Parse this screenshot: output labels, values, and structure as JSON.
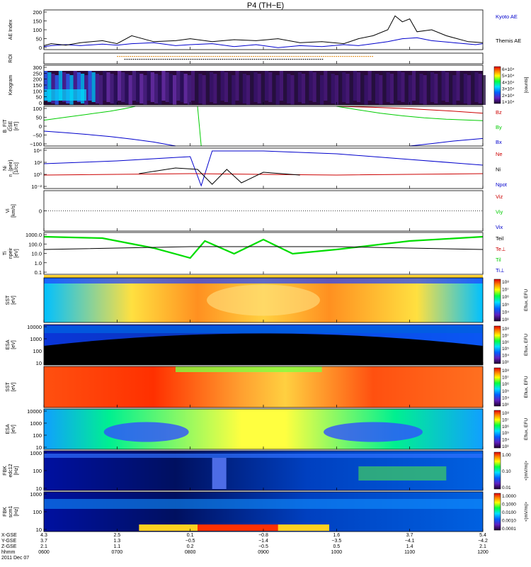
{
  "title": "P4 (TH−E)",
  "chart_data": [
    {
      "type": "line",
      "ylabel": "AE Index",
      "ylim": [
        0,
        200
      ],
      "yticks": [
        "200",
        "150",
        "100",
        "50",
        "0"
      ],
      "series": [
        {
          "name": "Kyoto AE",
          "color": "#0000cc",
          "x": [
            6.0,
            6.1,
            6.3,
            6.5,
            6.8,
            7.0,
            7.2,
            7.5,
            7.8,
            8.0,
            8.3,
            8.6,
            8.9,
            9.2,
            9.5,
            9.8,
            10.1,
            10.3,
            10.5,
            10.7,
            10.9,
            11.1,
            11.3,
            11.6,
            11.9,
            12.0
          ],
          "values": [
            15,
            20,
            25,
            20,
            28,
            22,
            30,
            35,
            20,
            25,
            30,
            15,
            25,
            10,
            20,
            15,
            25,
            20,
            30,
            40,
            55,
            60,
            45,
            35,
            25,
            30
          ]
        },
        {
          "name": "Themis AE",
          "color": "#000000",
          "x": [
            6.0,
            6.1,
            6.3,
            6.5,
            6.8,
            7.0,
            7.2,
            7.5,
            7.8,
            8.0,
            8.3,
            8.6,
            8.9,
            9.2,
            9.5,
            9.8,
            10.1,
            10.3,
            10.5,
            10.7,
            10.8,
            10.9,
            11.0,
            11.1,
            11.3,
            11.5,
            11.8,
            12.0
          ],
          "values": [
            20,
            30,
            22,
            35,
            45,
            30,
            70,
            40,
            45,
            55,
            40,
            50,
            45,
            55,
            35,
            40,
            30,
            55,
            70,
            100,
            170,
            140,
            155,
            90,
            100,
            70,
            40,
            35
          ]
        }
      ]
    },
    {
      "type": "table",
      "ylabel": "ROI"
    },
    {
      "type": "heatmap",
      "ylabel": "Keogram",
      "yticks": [
        "300",
        "250",
        "200",
        "150",
        "100",
        "50",
        "0"
      ],
      "colorbar": {
        "label": "[counts]",
        "ticks": [
          "6×10⁴",
          "5×10⁴",
          "4×10⁴",
          "3×10⁴",
          "2×10⁴",
          "1×10⁴"
        ]
      }
    },
    {
      "type": "line",
      "ylabel": "B_FIT\nGSE\n[nT]",
      "ylim": [
        -100,
        100
      ],
      "yticks": [
        "100",
        "50",
        "0",
        "−50",
        "−100"
      ],
      "series": [
        {
          "name": "Bz",
          "color": "#cc0000",
          "x": [
            10.0,
            10.5,
            11.0,
            11.5,
            12.0
          ],
          "values": [
            100,
            95,
            88,
            78,
            65
          ]
        },
        {
          "name": "By",
          "color": "#00cc00",
          "x": [
            6.0,
            6.3,
            6.6,
            6.9,
            7.1,
            7.25
          ],
          "values": [
            30,
            45,
            60,
            75,
            88,
            100
          ]
        },
        {
          "name": "By",
          "color": "#00cc00",
          "x": [
            8.1,
            8.15
          ],
          "values": [
            100,
            -100
          ]
        },
        {
          "name": "By",
          "color": "#00cc00",
          "x": [
            10.0,
            10.3,
            10.6,
            10.9,
            11.2,
            11.5,
            12.0
          ],
          "values": [
            100,
            82,
            65,
            52,
            42,
            35,
            28
          ]
        },
        {
          "name": "Bx",
          "color": "#0000cc",
          "x": [
            6.0,
            6.3,
            6.6,
            6.9,
            7.2,
            7.5,
            7.8
          ],
          "values": [
            -25,
            -33,
            -42,
            -52,
            -65,
            -80,
            -100
          ]
        },
        {
          "name": "Bx",
          "color": "#0000cc",
          "x": [
            11.0,
            11.3,
            11.6,
            12.0
          ],
          "values": [
            -100,
            -88,
            -75,
            -62
          ]
        }
      ]
    },
    {
      "type": "line",
      "ylabel": "Ni\nn_{peir}\n[1/cc]",
      "yticks": [
        "10⁴",
        "10²",
        "10⁰",
        "10⁻²"
      ],
      "series": [
        {
          "name": "Ne",
          "color": "#cc0000"
        },
        {
          "name": "Ni",
          "color": "#000000"
        },
        {
          "name": "Npot",
          "color": "#0000cc"
        }
      ]
    },
    {
      "type": "line",
      "ylabel": "Vi\n[km/s]",
      "yticks": [
        "0"
      ],
      "series": [
        {
          "name": "Viz",
          "color": "#cc0000"
        },
        {
          "name": "Viy",
          "color": "#00cc00"
        },
        {
          "name": "Vix",
          "color": "#0000cc"
        }
      ]
    },
    {
      "type": "line",
      "ylabel": "Ti\nnpeir\n[eV]",
      "yticks": [
        "1000.0",
        "100.0",
        "10.0",
        "1.0",
        "0.1"
      ],
      "series": [
        {
          "name": "Teil",
          "color": "#000000"
        },
        {
          "name": "Te⊥",
          "color": "#cc0000"
        },
        {
          "name": "Til",
          "color": "#00cc00"
        },
        {
          "name": "Ti⊥",
          "color": "#0000cc"
        }
      ]
    },
    {
      "type": "heatmap",
      "ylabel": "SST\n[eV]",
      "colorbar": {
        "label": "Eflux, EFU",
        "ticks": [
          "10⁸",
          "10⁷",
          "10⁶",
          "10⁵",
          "10⁴",
          "10³"
        ]
      }
    },
    {
      "type": "heatmap",
      "ylabel": "ESA\n[eV]",
      "yticks": [
        "10000",
        "1000",
        "100",
        "10"
      ],
      "colorbar": {
        "label": "Eflux, EFU",
        "ticks": [
          "10⁸",
          "10⁷",
          "10⁶",
          "10⁵",
          "10⁴",
          "10³"
        ]
      }
    },
    {
      "type": "heatmap",
      "ylabel": "SST\n[eV]",
      "colorbar": {
        "label": "Eflux, EFU",
        "ticks": [
          "10⁸",
          "10⁷",
          "10⁶",
          "10⁵",
          "10⁴",
          "10³"
        ]
      }
    },
    {
      "type": "heatmap",
      "ylabel": "ESA\n[eV]",
      "yticks": [
        "10000",
        "1000",
        "100",
        "10"
      ],
      "colorbar": {
        "label": "Eflux, EFU",
        "ticks": [
          "10⁸",
          "10⁷",
          "10⁶",
          "10⁵",
          "10⁴",
          "10³"
        ]
      }
    },
    {
      "type": "heatmap",
      "ylabel": "FBK\nedc12\n[Hz]",
      "yticks": [
        "1000",
        "100",
        "10"
      ],
      "colorbar": {
        "label": "<|mV/m|>",
        "ticks": [
          "1.00",
          "0.10",
          "0.01"
        ]
      }
    },
    {
      "type": "heatmap",
      "ylabel": "FBK\nscm1\n[Hz]",
      "yticks": [
        "1000",
        "100",
        "10"
      ],
      "colorbar": {
        "label": "<|mV/m|>",
        "ticks": [
          "1.0000",
          "0.1000",
          "0.0100",
          "0.0010",
          "0.0001"
        ]
      }
    }
  ],
  "footer": {
    "row_labels": [
      "X-GSE",
      "Y-GSE",
      "Z-GSE",
      "hhmm",
      "2011 Dec 07"
    ],
    "columns": [
      {
        "x": "4.3",
        "y": "3.7",
        "z": "2.1",
        "time": "0600"
      },
      {
        "x": "2.5",
        "y": "1.3",
        "z": "1.1",
        "time": "0700"
      },
      {
        "x": "0.1",
        "y": "−0.5",
        "z": "0.2",
        "time": "0800"
      },
      {
        "x": "−0.8",
        "y": "−1.4",
        "z": "−0.5",
        "time": "0900"
      },
      {
        "x": "1.6",
        "y": "−3.5",
        "z": "0.5",
        "time": "1000"
      },
      {
        "x": "3.7",
        "y": "−4.1",
        "z": "1.4",
        "time": "1100"
      },
      {
        "x": "5.4",
        "y": "−4.2",
        "z": "2.1",
        "time": "1200"
      }
    ]
  }
}
